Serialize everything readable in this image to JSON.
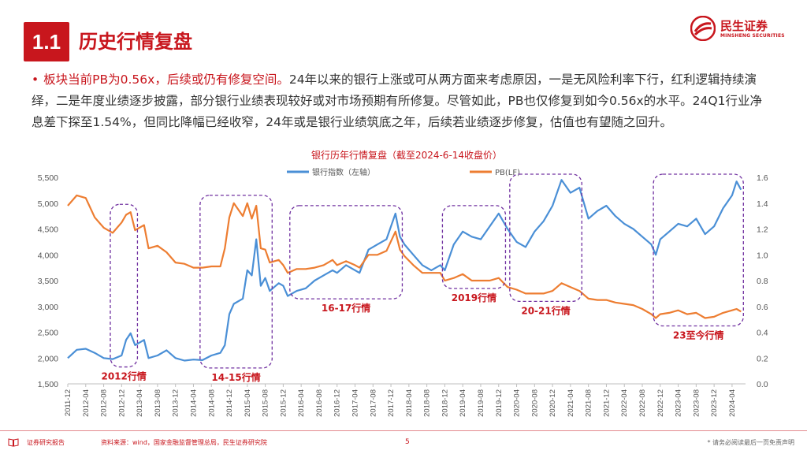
{
  "header": {
    "section_number": "1.1",
    "title": "历史行情复盘",
    "logo_cn": "民生证券",
    "logo_en": "MINSHENG SECURITIES"
  },
  "paragraph": {
    "bullet": "•",
    "highlight": "板块当前PB为0.56x，后续或仍有修复空间。",
    "body": "24年以来的银行上涨或可从两方面来考虑原因，一是无风险利率下行，红利逻辑持续演绎，二是年度业绩逐步披露，部分银行业绩表现较好或对市场预期有所修复。尽管如此，PB也仅修复到如今0.56x的水平。24Q1行业净息差下探至1.54%，但同比降幅已经收窄，24年或是银行业绩筑底之年，后续若业绩逐步修复，估值也有望随之回升。"
  },
  "footer": {
    "report_label": "证券研究报告",
    "source": "资料来源：wind，国家金融监督管理总局，民生证券研究院",
    "page": "5",
    "disclaimer": "* 请务必阅读最后一页免责声明"
  },
  "colors": {
    "brand_red": "#c8161d",
    "bank_index": "#4a8fd6",
    "pb": "#ed7d31",
    "box": "#7030a0"
  },
  "chart_data": {
    "type": "line",
    "title": "银行历年行情复盘（截至2024-6-14收盘价）",
    "legend_position": "top",
    "y_left": {
      "min": 1500,
      "max": 5500,
      "ticks": [
        "1,500",
        "2,000",
        "2,500",
        "3,000",
        "3,500",
        "4,000",
        "4,500",
        "5,000",
        "5,500"
      ]
    },
    "y_right": {
      "min": 0,
      "max": 1.6,
      "ticks": [
        "0.0",
        "0.2",
        "0.4",
        "0.6",
        "0.8",
        "1.0",
        "1.2",
        "1.4",
        "1.6"
      ]
    },
    "x_ticks": [
      "2011-12",
      "2012-04",
      "2012-08",
      "2012-12",
      "2013-04",
      "2013-08",
      "2013-12",
      "2014-04",
      "2014-08",
      "2014-12",
      "2015-04",
      "2015-08",
      "2015-12",
      "2016-04",
      "2016-08",
      "2016-12",
      "2017-04",
      "2017-08",
      "2017-12",
      "2018-04",
      "2018-08",
      "2018-12",
      "2019-04",
      "2019-08",
      "2019-12",
      "2020-04",
      "2020-08",
      "2020-12",
      "2021-04",
      "2021-08",
      "2021-12",
      "2022-04",
      "2022-08",
      "2022-12",
      "2023-04",
      "2023-08",
      "2023-12",
      "2024-04"
    ],
    "grid": false,
    "series": [
      {
        "name": "银行指数（左轴）",
        "axis": "left",
        "points": [
          [
            "2011-12",
            2000
          ],
          [
            "2012-02",
            2160
          ],
          [
            "2012-04",
            2180
          ],
          [
            "2012-06",
            2100
          ],
          [
            "2012-08",
            2000
          ],
          [
            "2012-10",
            1980
          ],
          [
            "2012-12",
            2050
          ],
          [
            "2013-01",
            2350
          ],
          [
            "2013-02",
            2480
          ],
          [
            "2013-03",
            2250
          ],
          [
            "2013-05",
            2350
          ],
          [
            "2013-06",
            2000
          ],
          [
            "2013-08",
            2050
          ],
          [
            "2013-10",
            2150
          ],
          [
            "2013-12",
            2000
          ],
          [
            "2014-02",
            1950
          ],
          [
            "2014-04",
            1970
          ],
          [
            "2014-06",
            1960
          ],
          [
            "2014-08",
            2050
          ],
          [
            "2014-10",
            2100
          ],
          [
            "2014-11",
            2250
          ],
          [
            "2014-12",
            2850
          ],
          [
            "2015-01",
            3050
          ],
          [
            "2015-03",
            3150
          ],
          [
            "2015-04",
            3700
          ],
          [
            "2015-05",
            3600
          ],
          [
            "2015-06",
            4300
          ],
          [
            "2015-07",
            3400
          ],
          [
            "2015-08",
            3550
          ],
          [
            "2015-09",
            3300
          ],
          [
            "2015-11",
            3450
          ],
          [
            "2015-12",
            3400
          ],
          [
            "2016-01",
            3200
          ],
          [
            "2016-03",
            3300
          ],
          [
            "2016-05",
            3350
          ],
          [
            "2016-07",
            3500
          ],
          [
            "2016-09",
            3600
          ],
          [
            "2016-11",
            3700
          ],
          [
            "2016-12",
            3650
          ],
          [
            "2017-02",
            3800
          ],
          [
            "2017-04",
            3700
          ],
          [
            "2017-05",
            3650
          ],
          [
            "2017-07",
            4100
          ],
          [
            "2017-09",
            4200
          ],
          [
            "2017-11",
            4300
          ],
          [
            "2018-01",
            4800
          ],
          [
            "2018-02",
            4350
          ],
          [
            "2018-03",
            4200
          ],
          [
            "2018-05",
            4000
          ],
          [
            "2018-07",
            3800
          ],
          [
            "2018-09",
            3700
          ],
          [
            "2018-11",
            3800
          ],
          [
            "2018-12",
            3700
          ],
          [
            "2019-02",
            4200
          ],
          [
            "2019-04",
            4450
          ],
          [
            "2019-06",
            4350
          ],
          [
            "2019-08",
            4300
          ],
          [
            "2019-10",
            4550
          ],
          [
            "2019-12",
            4800
          ],
          [
            "2020-02",
            4500
          ],
          [
            "2020-04",
            4250
          ],
          [
            "2020-06",
            4150
          ],
          [
            "2020-08",
            4450
          ],
          [
            "2020-10",
            4650
          ],
          [
            "2020-12",
            4950
          ],
          [
            "2021-02",
            5450
          ],
          [
            "2021-04",
            5200
          ],
          [
            "2021-06",
            5300
          ],
          [
            "2021-08",
            4700
          ],
          [
            "2021-10",
            4850
          ],
          [
            "2021-12",
            4950
          ],
          [
            "2022-02",
            4750
          ],
          [
            "2022-04",
            4600
          ],
          [
            "2022-06",
            4500
          ],
          [
            "2022-08",
            4350
          ],
          [
            "2022-10",
            4200
          ],
          [
            "2022-11",
            4000
          ],
          [
            "2022-12",
            4300
          ],
          [
            "2023-02",
            4450
          ],
          [
            "2023-04",
            4600
          ],
          [
            "2023-06",
            4550
          ],
          [
            "2023-08",
            4700
          ],
          [
            "2023-10",
            4400
          ],
          [
            "2023-12",
            4550
          ],
          [
            "2024-02",
            4900
          ],
          [
            "2024-04",
            5150
          ],
          [
            "2024-05",
            5420
          ],
          [
            "2024-06",
            5260
          ]
        ]
      },
      {
        "name": "PB(LF)",
        "axis": "right",
        "points": [
          [
            "2011-12",
            1.38
          ],
          [
            "2012-02",
            1.46
          ],
          [
            "2012-04",
            1.44
          ],
          [
            "2012-06",
            1.29
          ],
          [
            "2012-08",
            1.21
          ],
          [
            "2012-10",
            1.17
          ],
          [
            "2012-12",
            1.25
          ],
          [
            "2013-01",
            1.31
          ],
          [
            "2013-02",
            1.33
          ],
          [
            "2013-03",
            1.19
          ],
          [
            "2013-05",
            1.23
          ],
          [
            "2013-06",
            1.05
          ],
          [
            "2013-08",
            1.07
          ],
          [
            "2013-10",
            1.02
          ],
          [
            "2013-12",
            0.94
          ],
          [
            "2014-02",
            0.93
          ],
          [
            "2014-04",
            0.9
          ],
          [
            "2014-06",
            0.9
          ],
          [
            "2014-08",
            0.91
          ],
          [
            "2014-10",
            0.91
          ],
          [
            "2014-11",
            1.05
          ],
          [
            "2014-12",
            1.29
          ],
          [
            "2015-01",
            1.4
          ],
          [
            "2015-03",
            1.3
          ],
          [
            "2015-04",
            1.4
          ],
          [
            "2015-05",
            1.28
          ],
          [
            "2015-06",
            1.38
          ],
          [
            "2015-07",
            1.05
          ],
          [
            "2015-08",
            1.04
          ],
          [
            "2015-09",
            0.94
          ],
          [
            "2015-11",
            0.96
          ],
          [
            "2015-12",
            0.92
          ],
          [
            "2016-01",
            0.86
          ],
          [
            "2016-03",
            0.89
          ],
          [
            "2016-05",
            0.89
          ],
          [
            "2016-07",
            0.9
          ],
          [
            "2016-09",
            0.92
          ],
          [
            "2016-11",
            0.96
          ],
          [
            "2016-12",
            0.92
          ],
          [
            "2017-02",
            0.95
          ],
          [
            "2017-04",
            0.92
          ],
          [
            "2017-05",
            0.9
          ],
          [
            "2017-07",
            1.0
          ],
          [
            "2017-09",
            1.0
          ],
          [
            "2017-11",
            1.03
          ],
          [
            "2018-01",
            1.18
          ],
          [
            "2018-02",
            1.04
          ],
          [
            "2018-03",
            0.99
          ],
          [
            "2018-05",
            0.92
          ],
          [
            "2018-07",
            0.86
          ],
          [
            "2018-09",
            0.86
          ],
          [
            "2018-11",
            0.86
          ],
          [
            "2018-12",
            0.8
          ],
          [
            "2019-02",
            0.82
          ],
          [
            "2019-04",
            0.85
          ],
          [
            "2019-06",
            0.8
          ],
          [
            "2019-08",
            0.8
          ],
          [
            "2019-10",
            0.8
          ],
          [
            "2019-12",
            0.82
          ],
          [
            "2020-02",
            0.75
          ],
          [
            "2020-04",
            0.73
          ],
          [
            "2020-06",
            0.7
          ],
          [
            "2020-08",
            0.7
          ],
          [
            "2020-10",
            0.7
          ],
          [
            "2020-12",
            0.72
          ],
          [
            "2021-02",
            0.78
          ],
          [
            "2021-04",
            0.75
          ],
          [
            "2021-06",
            0.72
          ],
          [
            "2021-08",
            0.66
          ],
          [
            "2021-10",
            0.65
          ],
          [
            "2021-12",
            0.65
          ],
          [
            "2022-02",
            0.63
          ],
          [
            "2022-04",
            0.62
          ],
          [
            "2022-06",
            0.61
          ],
          [
            "2022-08",
            0.58
          ],
          [
            "2022-10",
            0.54
          ],
          [
            "2022-11",
            0.51
          ],
          [
            "2022-12",
            0.54
          ],
          [
            "2023-02",
            0.55
          ],
          [
            "2023-04",
            0.57
          ],
          [
            "2023-06",
            0.54
          ],
          [
            "2023-08",
            0.55
          ],
          [
            "2023-10",
            0.51
          ],
          [
            "2023-12",
            0.52
          ],
          [
            "2024-02",
            0.55
          ],
          [
            "2024-04",
            0.57
          ],
          [
            "2024-05",
            0.58
          ],
          [
            "2024-06",
            0.56
          ]
        ]
      }
    ],
    "annotations": [
      {
        "label": "2012行情",
        "start": "2012-10",
        "end": "2013-03"
      },
      {
        "label": "14-15行情",
        "start": "2014-06",
        "end": "2015-09"
      },
      {
        "label": "16-17行情",
        "start": "2016-02",
        "end": "2018-02"
      },
      {
        "label": "2019行情",
        "start": "2018-12",
        "end": "2020-01"
      },
      {
        "label": "20-21行情",
        "start": "2020-03",
        "end": "2021-06"
      },
      {
        "label": "23至今行情",
        "start": "2022-11",
        "end": "2024-06"
      }
    ]
  }
}
